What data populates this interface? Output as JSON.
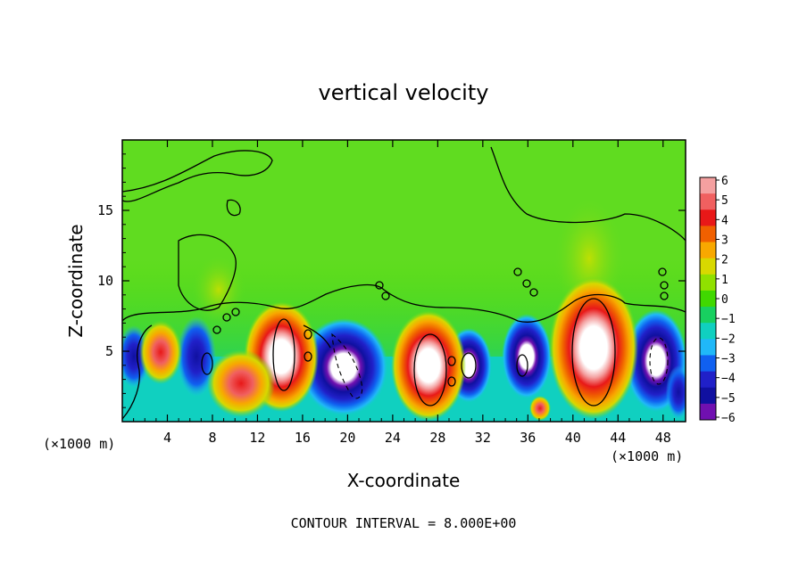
{
  "chart_data": {
    "type": "heatmap",
    "title": "vertical velocity",
    "xlabel": "X-coordinate",
    "ylabel": "Z-coordinate",
    "x_unit": "(×1000 m)",
    "x_unit_right": "(×1000 m)",
    "xlim": [
      0,
      50
    ],
    "ylim": [
      0,
      20
    ],
    "x_ticks": [
      "4",
      "8",
      "12",
      "16",
      "20",
      "24",
      "28",
      "32",
      "36",
      "40",
      "44",
      "48"
    ],
    "y_ticks": [
      "5",
      "10",
      "15"
    ],
    "note": "CONTOUR INTERVAL = 8.000E+00",
    "colorbar": {
      "labels": [
        "6",
        "5",
        "4",
        "3",
        "2",
        "1",
        "0",
        "−1",
        "−2",
        "−3",
        "−4",
        "−5",
        "−6"
      ],
      "colors": [
        "#f4a0a0",
        "#f06060",
        "#e81818",
        "#f06000",
        "#f8a800",
        "#d8d800",
        "#90e000",
        "#40d800",
        "#18d060",
        "#10d0c0",
        "#20b8f8",
        "#1060f0",
        "#2020c8",
        "#1010a0",
        "#7010b0"
      ]
    },
    "features": [
      {
        "kind": "updraft",
        "x": 14.5,
        "z": 4.0,
        "peak": "6+"
      },
      {
        "kind": "updraft",
        "x": 27.0,
        "z": 4.0,
        "peak": "6+"
      },
      {
        "kind": "updraft",
        "x": 41.5,
        "z": 5.0,
        "peak": "6+"
      },
      {
        "kind": "updraft",
        "x": 10.0,
        "z": 2.5,
        "peak": 6
      },
      {
        "kind": "updraft",
        "x": 3.5,
        "z": 4.5,
        "peak": 5
      },
      {
        "kind": "downdraft",
        "x": 19.5,
        "z": 3.5,
        "peak": "-6"
      },
      {
        "kind": "downdraft",
        "x": 47.5,
        "z": 4.0,
        "peak": "-6"
      },
      {
        "kind": "downdraft",
        "x": 30.5,
        "z": 3.5,
        "peak": "-6"
      },
      {
        "kind": "downdraft",
        "x": 35.5,
        "z": 4.0,
        "peak": "-6"
      },
      {
        "kind": "downdraft",
        "x": 6.5,
        "z": 4.5,
        "peak": "-6"
      }
    ]
  }
}
